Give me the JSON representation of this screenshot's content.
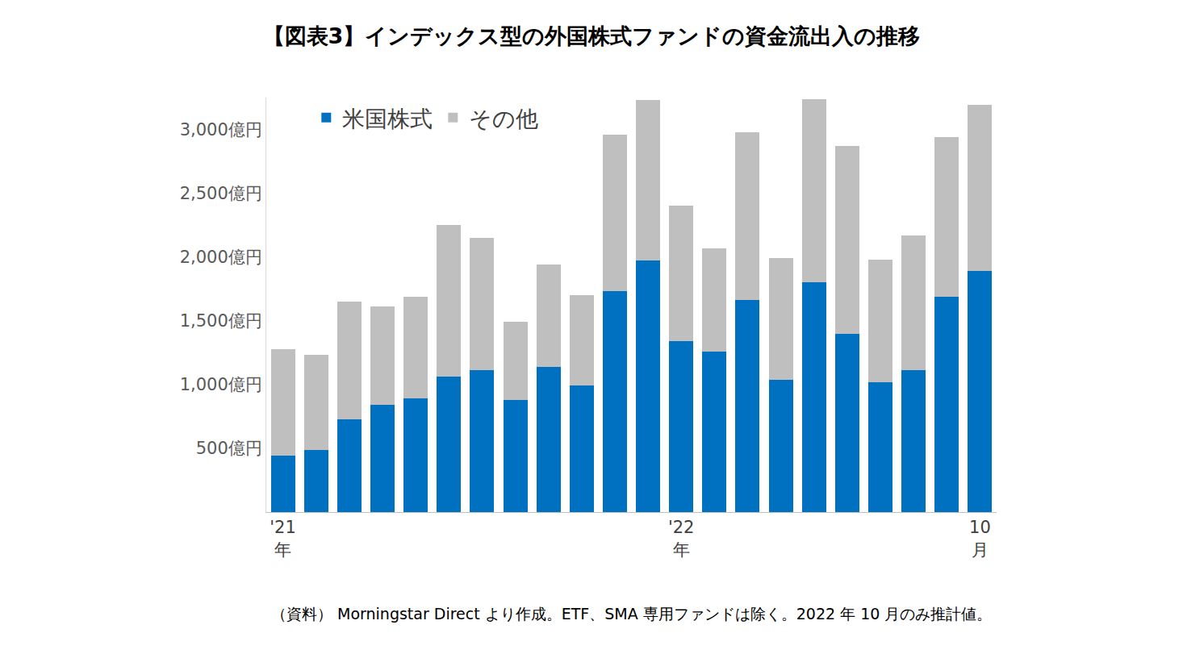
{
  "chart_data": {
    "type": "bar",
    "title": "【図表3】インデックス型の外国株式ファンドの資金流出入の推移",
    "note": "（資料） Morningstar Direct より作成。ETF、SMA 専用ファンドは除く。2022 年 10 月のみ推計値。",
    "categories": [
      "'21\n年",
      null,
      null,
      null,
      null,
      null,
      null,
      null,
      null,
      null,
      null,
      null,
      "'22\n年",
      null,
      null,
      null,
      null,
      null,
      null,
      null,
      null,
      "10\n月"
    ],
    "stacked": true,
    "series": [
      {
        "name": "米国株式",
        "color": "#0070C0",
        "values": [
          440,
          490,
          730,
          840,
          890,
          1060,
          1110,
          880,
          1140,
          990,
          1730,
          1970,
          1340,
          1260,
          1660,
          1040,
          1800,
          1400,
          1020,
          1110,
          1690,
          1890
        ]
      },
      {
        "name": "その他",
        "color": "#BFBFBF",
        "values": [
          840,
          740,
          920,
          770,
          800,
          1190,
          1040,
          610,
          800,
          710,
          1230,
          1260,
          1060,
          810,
          1320,
          950,
          1440,
          1470,
          960,
          1060,
          1250,
          1300
        ]
      }
    ],
    "ylim": [
      0,
      3250
    ],
    "yticks": [
      {
        "value": 500,
        "label": "500億円"
      },
      {
        "value": 1000,
        "label": "1,000億円"
      },
      {
        "value": 1500,
        "label": "1,500億円"
      },
      {
        "value": 2000,
        "label": "2,000億円"
      },
      {
        "value": 2500,
        "label": "2,500億円"
      },
      {
        "value": 3000,
        "label": "3,000億円"
      }
    ],
    "grid": false,
    "legend": "top left"
  }
}
